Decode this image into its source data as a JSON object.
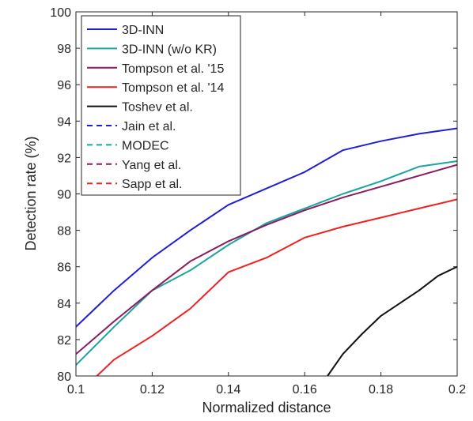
{
  "chart_data": {
    "type": "line",
    "xlabel": "Normalized distance",
    "ylabel": "Detection rate (%)",
    "xlim": [
      0.1,
      0.2
    ],
    "ylim": [
      80,
      100
    ],
    "xticks": [
      "0.1",
      "0.12",
      "0.14",
      "0.16",
      "0.18",
      "0.2"
    ],
    "yticks": [
      "80",
      "82",
      "84",
      "86",
      "88",
      "90",
      "92",
      "94",
      "96",
      "98",
      "100"
    ],
    "grid": false,
    "legend_position": "top-left",
    "series": [
      {
        "name": "3D-INN",
        "color": "#1f1fd6",
        "dash": "solid",
        "x": [
          0.1,
          0.11,
          0.12,
          0.13,
          0.14,
          0.15,
          0.16,
          0.17,
          0.18,
          0.19,
          0.2
        ],
        "y": [
          82.7,
          84.7,
          86.5,
          88.0,
          89.4,
          90.3,
          91.2,
          92.4,
          92.9,
          93.3,
          93.6
        ]
      },
      {
        "name": "3D-INN (w/o KR)",
        "color": "#1aa5a0",
        "dash": "solid",
        "x": [
          0.1,
          0.11,
          0.12,
          0.13,
          0.14,
          0.15,
          0.16,
          0.17,
          0.18,
          0.19,
          0.2
        ],
        "y": [
          80.6,
          82.7,
          84.7,
          85.8,
          87.2,
          88.4,
          89.2,
          90.0,
          90.7,
          91.5,
          91.8
        ]
      },
      {
        "name": "Tompson et al. '15",
        "color": "#8b1a5e",
        "dash": "solid",
        "x": [
          0.1,
          0.11,
          0.12,
          0.13,
          0.14,
          0.15,
          0.16,
          0.17,
          0.18,
          0.19,
          0.2
        ],
        "y": [
          81.2,
          83.0,
          84.7,
          86.3,
          87.4,
          88.3,
          89.1,
          89.8,
          90.4,
          91.0,
          91.6
        ]
      },
      {
        "name": "Tompson et al. '14",
        "color": "#f02020",
        "dash": "solid",
        "x": [
          0.1,
          0.105,
          0.11,
          0.12,
          0.13,
          0.14,
          0.15,
          0.16,
          0.17,
          0.18,
          0.19,
          0.2
        ],
        "y": [
          78.5,
          79.9,
          80.9,
          82.2,
          83.7,
          85.7,
          86.5,
          87.6,
          88.2,
          88.7,
          89.2,
          89.7
        ]
      },
      {
        "name": "Toshev et al.",
        "color": "#111111",
        "dash": "solid",
        "x": [
          0.166,
          0.17,
          0.175,
          0.18,
          0.185,
          0.19,
          0.195,
          0.2
        ],
        "y": [
          80.0,
          81.2,
          82.3,
          83.3,
          84.0,
          84.7,
          85.5,
          86.0
        ]
      },
      {
        "name": "Jain et al.",
        "color": "#1f1fd6",
        "dash": "dashed",
        "x": [],
        "y": []
      },
      {
        "name": "MODEC",
        "color": "#1aa5a0",
        "dash": "dashed",
        "x": [],
        "y": []
      },
      {
        "name": "Yang et al.",
        "color": "#8b1a5e",
        "dash": "dashed",
        "x": [],
        "y": []
      },
      {
        "name": "Sapp et al.",
        "color": "#f02020",
        "dash": "dashed",
        "x": [],
        "y": []
      }
    ]
  }
}
